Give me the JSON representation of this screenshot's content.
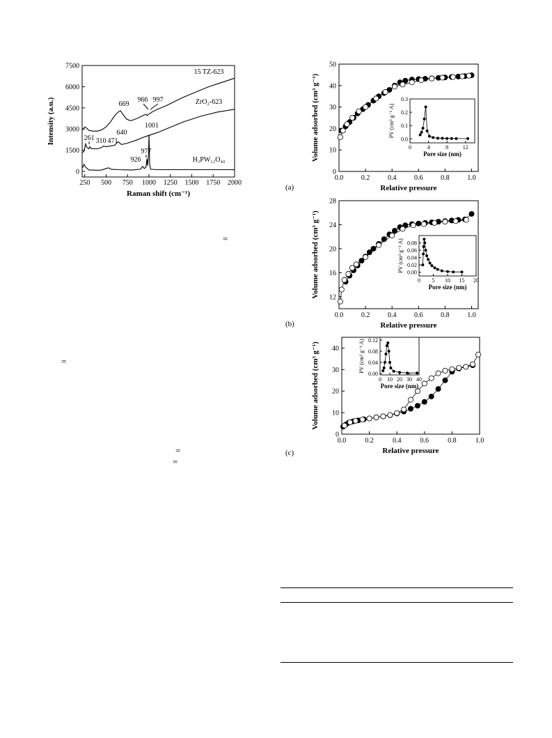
{
  "page": {
    "stray_equals": [
      "=",
      "=",
      "=",
      "="
    ]
  },
  "raman": {
    "type": "line",
    "xlabel": "Raman shift (cm⁻¹)",
    "ylabel": "Intensity (a.u.)",
    "xlim": [
      220,
      2000
    ],
    "ylim": [
      -400,
      7500
    ],
    "xticks": [
      250,
      500,
      750,
      1000,
      1250,
      1500,
      1750,
      2000
    ],
    "yticks": [
      0,
      1500,
      3000,
      4500,
      6000,
      7500
    ],
    "series": [
      {
        "name": "15 TZ-623",
        "points": [
          [
            225,
            2950
          ],
          [
            250,
            3150
          ],
          [
            275,
            3050
          ],
          [
            300,
            2900
          ],
          [
            350,
            2850
          ],
          [
            400,
            2850
          ],
          [
            450,
            2950
          ],
          [
            500,
            3150
          ],
          [
            550,
            3500
          ],
          [
            600,
            3950
          ],
          [
            640,
            4200
          ],
          [
            669,
            4300
          ],
          [
            700,
            4000
          ],
          [
            740,
            3700
          ],
          [
            780,
            3600
          ],
          [
            820,
            3650
          ],
          [
            880,
            3800
          ],
          [
            930,
            3950
          ],
          [
            966,
            4050
          ],
          [
            980,
            3950
          ],
          [
            997,
            4050
          ],
          [
            1050,
            4250
          ],
          [
            1100,
            4400
          ],
          [
            1200,
            4650
          ],
          [
            1300,
            4950
          ],
          [
            1400,
            5250
          ],
          [
            1500,
            5500
          ],
          [
            1600,
            5750
          ],
          [
            1700,
            6000
          ],
          [
            1800,
            6200
          ],
          [
            1900,
            6400
          ],
          [
            2000,
            6600
          ]
        ]
      },
      {
        "name": "ZrO2-623",
        "points": [
          [
            225,
            1350
          ],
          [
            240,
            1400
          ],
          [
            250,
            1650
          ],
          [
            261,
            1950
          ],
          [
            275,
            1700
          ],
          [
            300,
            1600
          ],
          [
            310,
            1750
          ],
          [
            330,
            1600
          ],
          [
            400,
            1600
          ],
          [
            450,
            1700
          ],
          [
            471,
            1800
          ],
          [
            500,
            1750
          ],
          [
            550,
            1800
          ],
          [
            600,
            1850
          ],
          [
            640,
            2100
          ],
          [
            680,
            1900
          ],
          [
            750,
            2000
          ],
          [
            850,
            2200
          ],
          [
            950,
            2450
          ],
          [
            1000,
            2550
          ],
          [
            1100,
            2750
          ],
          [
            1200,
            3000
          ],
          [
            1300,
            3250
          ],
          [
            1400,
            3500
          ],
          [
            1500,
            3700
          ],
          [
            1600,
            3900
          ],
          [
            1700,
            4050
          ],
          [
            1800,
            4200
          ],
          [
            1900,
            4300
          ],
          [
            2000,
            4400
          ]
        ]
      },
      {
        "name": "H3PW12O40",
        "points": [
          [
            225,
            250
          ],
          [
            240,
            500
          ],
          [
            260,
            300
          ],
          [
            300,
            100
          ],
          [
            400,
            80
          ],
          [
            450,
            100
          ],
          [
            500,
            200
          ],
          [
            530,
            250
          ],
          [
            560,
            150
          ],
          [
            650,
            120
          ],
          [
            800,
            100
          ],
          [
            900,
            150
          ],
          [
            926,
            350
          ],
          [
            945,
            200
          ],
          [
            965,
            300
          ],
          [
            977,
            900
          ],
          [
            985,
            400
          ],
          [
            995,
            1200
          ],
          [
            1001,
            2600
          ],
          [
            1008,
            500
          ],
          [
            1020,
            150
          ],
          [
            1100,
            120
          ],
          [
            1300,
            120
          ],
          [
            1500,
            120
          ],
          [
            1700,
            120
          ],
          [
            1900,
            120
          ],
          [
            2000,
            120
          ]
        ]
      }
    ],
    "series_labels": [
      "15 TZ-623",
      "ZrO₂-623",
      "H₃PW₁₂O₄₀"
    ],
    "annotations": [
      "669",
      "966",
      "997",
      "640",
      "261",
      "310",
      "471",
      "1001",
      "926",
      "977"
    ]
  },
  "iso_a": {
    "type": "scatter",
    "panel_label": "(a)",
    "xlabel": "Relative pressure",
    "ylabel": "Volume adsorbed (cm³ g⁻¹)",
    "xlim": [
      0,
      1.05
    ],
    "ylim": [
      0,
      50
    ],
    "xticks": [
      "0.0",
      "0.2",
      "0.4",
      "0.6",
      "0.8",
      "1.0"
    ],
    "yticks": [
      "0",
      "10",
      "20",
      "30",
      "40",
      "50"
    ],
    "series": [
      {
        "name": "adsorption",
        "marker": "filled",
        "points": [
          [
            0.02,
            19
          ],
          [
            0.05,
            21
          ],
          [
            0.08,
            23
          ],
          [
            0.11,
            25
          ],
          [
            0.14,
            27
          ],
          [
            0.18,
            29
          ],
          [
            0.22,
            31
          ],
          [
            0.26,
            33
          ],
          [
            0.3,
            35
          ],
          [
            0.34,
            36.5
          ],
          [
            0.38,
            38
          ],
          [
            0.42,
            40
          ],
          [
            0.46,
            41.5
          ],
          [
            0.5,
            42.3
          ],
          [
            0.55,
            42.8
          ],
          [
            0.6,
            43
          ],
          [
            0.65,
            43.2
          ],
          [
            0.7,
            43.4
          ],
          [
            0.75,
            43.6
          ],
          [
            0.8,
            43.8
          ],
          [
            0.85,
            44
          ],
          [
            0.9,
            44.2
          ],
          [
            0.95,
            44.4
          ],
          [
            1.0,
            44.8
          ]
        ]
      },
      {
        "name": "desorption",
        "marker": "open",
        "points": [
          [
            0.01,
            16
          ],
          [
            0.03,
            19
          ],
          [
            0.06,
            22
          ],
          [
            0.1,
            25
          ],
          [
            0.15,
            28
          ],
          [
            0.2,
            30
          ],
          [
            0.28,
            34
          ],
          [
            0.35,
            37
          ],
          [
            0.42,
            39.5
          ],
          [
            0.48,
            40.5
          ],
          [
            0.55,
            41.5
          ],
          [
            0.62,
            42.5
          ],
          [
            0.7,
            43.3
          ],
          [
            0.78,
            43.7
          ],
          [
            0.86,
            44
          ],
          [
            0.93,
            44.3
          ],
          [
            0.98,
            44.6
          ]
        ]
      }
    ],
    "inset": {
      "xlabel": "Pore size (nm)",
      "ylabel": "PV (cm³ g⁻¹ A)",
      "xlim": [
        0,
        14
      ],
      "ylim": [
        -0.03,
        0.3
      ],
      "xticks": [
        "0",
        "4",
        "8",
        "12"
      ],
      "yticks": [
        "0.0",
        "0.1",
        "0.2",
        "0.3"
      ],
      "points": [
        [
          2.2,
          0.03
        ],
        [
          2.5,
          0.05
        ],
        [
          2.8,
          0.08
        ],
        [
          3.1,
          0.15
        ],
        [
          3.4,
          0.24
        ],
        [
          3.7,
          0.06
        ],
        [
          4.2,
          0.02
        ],
        [
          5,
          0.01
        ],
        [
          6,
          0.005
        ],
        [
          7,
          0.005
        ],
        [
          8,
          0.003
        ],
        [
          9,
          0.003
        ],
        [
          10,
          0.002
        ],
        [
          12.5,
          0.002
        ]
      ]
    }
  },
  "iso_b": {
    "type": "scatter",
    "panel_label": "(b)",
    "xlabel": "Relative pressure",
    "ylabel": "Volume adsorbed (cm³ g⁻¹)",
    "xlim": [
      0,
      1.05
    ],
    "ylim": [
      10,
      28
    ],
    "xticks": [
      "0.0",
      "0.2",
      "0.4",
      "0.6",
      "0.8",
      "1.0"
    ],
    "yticks": [
      "12",
      "16",
      "20",
      "24",
      "28"
    ],
    "series": [
      {
        "name": "adsorption",
        "marker": "filled",
        "points": [
          [
            0.05,
            14.5
          ],
          [
            0.08,
            15.5
          ],
          [
            0.11,
            16.4
          ],
          [
            0.14,
            17.2
          ],
          [
            0.17,
            18
          ],
          [
            0.2,
            18.7
          ],
          [
            0.23,
            19.4
          ],
          [
            0.26,
            20
          ],
          [
            0.3,
            20.8
          ],
          [
            0.34,
            21.6
          ],
          [
            0.38,
            22.4
          ],
          [
            0.42,
            23
          ],
          [
            0.46,
            23.6
          ],
          [
            0.5,
            23.9
          ],
          [
            0.55,
            24.1
          ],
          [
            0.6,
            24.2
          ],
          [
            0.65,
            24.3
          ],
          [
            0.7,
            24.4
          ],
          [
            0.75,
            24.5
          ],
          [
            0.8,
            24.6
          ],
          [
            0.85,
            24.7
          ],
          [
            0.9,
            24.8
          ],
          [
            0.95,
            24.9
          ],
          [
            1.0,
            25.8
          ]
        ]
      },
      {
        "name": "desorption",
        "marker": "open",
        "points": [
          [
            0.01,
            11.2
          ],
          [
            0.02,
            13.2
          ],
          [
            0.04,
            14.8
          ],
          [
            0.07,
            15.8
          ],
          [
            0.1,
            16.8
          ],
          [
            0.13,
            17.4
          ],
          [
            0.2,
            18.6
          ],
          [
            0.3,
            20.6
          ],
          [
            0.4,
            22.2
          ],
          [
            0.48,
            23.3
          ],
          [
            0.56,
            23.9
          ],
          [
            0.64,
            24.1
          ],
          [
            0.72,
            24.3
          ],
          [
            0.8,
            24.5
          ],
          [
            0.88,
            24.6
          ],
          [
            0.96,
            24.8
          ]
        ]
      }
    ],
    "inset": {
      "xlabel": "Pore size (nm)",
      "ylabel": "PV (cm³ g⁻¹ A)",
      "xlim": [
        0,
        20
      ],
      "ylim": [
        -0.01,
        0.1
      ],
      "xticks": [
        "0",
        "5",
        "10",
        "15",
        "20"
      ],
      "yticks": [
        "0.00",
        "0.02",
        "0.04",
        "0.06",
        "0.08"
      ],
      "points": [
        [
          1.3,
          0.02
        ],
        [
          1.5,
          0.05
        ],
        [
          1.6,
          0.07
        ],
        [
          1.8,
          0.09
        ],
        [
          2,
          0.08
        ],
        [
          2.3,
          0.06
        ],
        [
          2.7,
          0.045
        ],
        [
          3.2,
          0.035
        ],
        [
          3.8,
          0.025
        ],
        [
          4.5,
          0.018
        ],
        [
          5.5,
          0.012
        ],
        [
          6.5,
          0.008
        ],
        [
          8,
          0.004
        ],
        [
          10,
          0.002
        ],
        [
          12,
          0.001
        ],
        [
          15,
          0.001
        ]
      ]
    }
  },
  "iso_c": {
    "type": "scatter",
    "panel_label": "(c)",
    "xlabel": "Relative pressure",
    "ylabel": "Volume adsorbed (cm³ g⁻¹)",
    "xlim": [
      0,
      1.0
    ],
    "ylim": [
      0,
      45
    ],
    "xticks": [
      "0.0",
      "0.2",
      "0.4",
      "0.6",
      "0.8",
      "1.0"
    ],
    "yticks": [
      "0",
      "10",
      "20",
      "30",
      "40"
    ],
    "series": [
      {
        "name": "adsorption",
        "marker": "filled",
        "points": [
          [
            0.01,
            3.5
          ],
          [
            0.03,
            4.5
          ],
          [
            0.05,
            5.3
          ],
          [
            0.08,
            5.9
          ],
          [
            0.12,
            6.4
          ],
          [
            0.16,
            6.9
          ],
          [
            0.2,
            7.3
          ],
          [
            0.25,
            7.8
          ],
          [
            0.3,
            8.3
          ],
          [
            0.35,
            8.8
          ],
          [
            0.4,
            9.6
          ],
          [
            0.45,
            10.5
          ],
          [
            0.5,
            11.8
          ],
          [
            0.55,
            13.2
          ],
          [
            0.6,
            15
          ],
          [
            0.65,
            17.5
          ],
          [
            0.7,
            21
          ],
          [
            0.75,
            25
          ],
          [
            0.8,
            29
          ],
          [
            0.85,
            30.5
          ],
          [
            0.9,
            31.3
          ],
          [
            0.95,
            32
          ]
        ]
      },
      {
        "name": "desorption",
        "marker": "open",
        "points": [
          [
            0.02,
            4
          ],
          [
            0.06,
            5.5
          ],
          [
            0.1,
            6.2
          ],
          [
            0.15,
            6.8
          ],
          [
            0.2,
            7.3
          ],
          [
            0.25,
            7.8
          ],
          [
            0.3,
            8.3
          ],
          [
            0.35,
            8.9
          ],
          [
            0.4,
            9.8
          ],
          [
            0.45,
            11.5
          ],
          [
            0.5,
            16
          ],
          [
            0.55,
            20
          ],
          [
            0.6,
            23.5
          ],
          [
            0.65,
            26
          ],
          [
            0.7,
            28.3
          ],
          [
            0.75,
            29.5
          ],
          [
            0.8,
            30.2
          ],
          [
            0.85,
            30.8
          ],
          [
            0.9,
            31.3
          ],
          [
            0.95,
            32.5
          ],
          [
            0.99,
            37
          ]
        ]
      }
    ],
    "inset": {
      "xlabel": "Pore size (nm)",
      "ylabel": "PV (cm³ g⁻¹ A)",
      "xlim": [
        0,
        40
      ],
      "ylim": [
        -0.005,
        0.13
      ],
      "xticks": [
        "0",
        "10",
        "20",
        "30",
        "40"
      ],
      "yticks": [
        "0.00",
        "0.04",
        "0.08",
        "0.12"
      ],
      "points": [
        [
          3,
          0.01
        ],
        [
          4,
          0.02
        ],
        [
          5,
          0.04
        ],
        [
          6,
          0.07
        ],
        [
          7,
          0.1
        ],
        [
          8,
          0.11
        ],
        [
          9,
          0.08
        ],
        [
          10,
          0.04
        ],
        [
          11,
          0.02
        ],
        [
          14,
          0.008
        ],
        [
          20,
          0.004
        ],
        [
          28,
          0.002
        ],
        [
          38,
          0.002
        ]
      ]
    }
  }
}
